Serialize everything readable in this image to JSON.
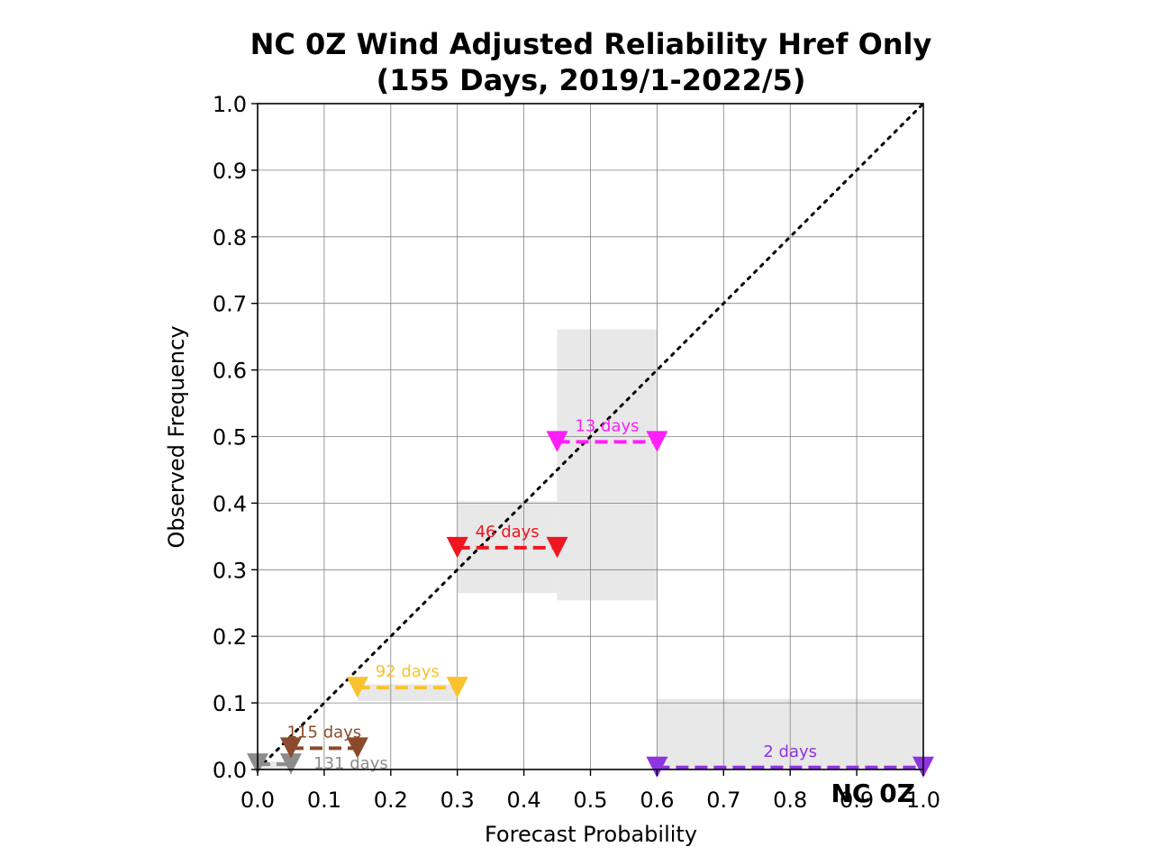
{
  "chart_data": {
    "type": "line",
    "title": "NC 0Z Wind Adjusted Reliability Href Only",
    "subtitle": "(155 Days, 2019/1-2022/5)",
    "xlabel": "Forecast Probability",
    "ylabel": "Observed Frequency",
    "xlim": [
      0,
      1
    ],
    "ylim": [
      0,
      1
    ],
    "xticks": [
      "0.0",
      "0.1",
      "0.2",
      "0.3",
      "0.4",
      "0.5",
      "0.6",
      "0.7",
      "0.8",
      "0.9",
      "1.0"
    ],
    "yticks": [
      "0.0",
      "0.1",
      "0.2",
      "0.3",
      "0.4",
      "0.5",
      "0.6",
      "0.7",
      "0.8",
      "0.9",
      "1.0"
    ],
    "grid": true,
    "corner_label": "NC 0Z",
    "diagonal": {
      "x": [
        0,
        1
      ],
      "y": [
        0,
        1
      ],
      "style": "dotted",
      "color": "#000000"
    },
    "series": [
      {
        "x0": 0.0,
        "x1": 0.05,
        "y": 0.008,
        "ci": [
          0.0,
          0.012
        ],
        "label": "131 days",
        "color": "#8c8c8c"
      },
      {
        "x0": 0.05,
        "x1": 0.15,
        "y": 0.032,
        "ci": [
          0.0,
          0.0
        ],
        "label": "115 days",
        "color": "#8b4a2b"
      },
      {
        "x0": 0.15,
        "x1": 0.3,
        "y": 0.123,
        "ci": [
          0.103,
          0.128
        ],
        "label": "92 days",
        "color": "#f9c22e"
      },
      {
        "x0": 0.3,
        "x1": 0.45,
        "y": 0.333,
        "ci": [
          0.265,
          0.403
        ],
        "label": "46 days",
        "color": "#ee1620"
      },
      {
        "x0": 0.45,
        "x1": 0.6,
        "y": 0.492,
        "ci": [
          0.254,
          0.661
        ],
        "label": "13 days",
        "color": "#ff1ff8"
      },
      {
        "x0": 0.6,
        "x1": 1.0,
        "y": 0.003,
        "ci": [
          0.0,
          0.106
        ],
        "label": "2 days",
        "color": "#8f34e3"
      }
    ]
  }
}
